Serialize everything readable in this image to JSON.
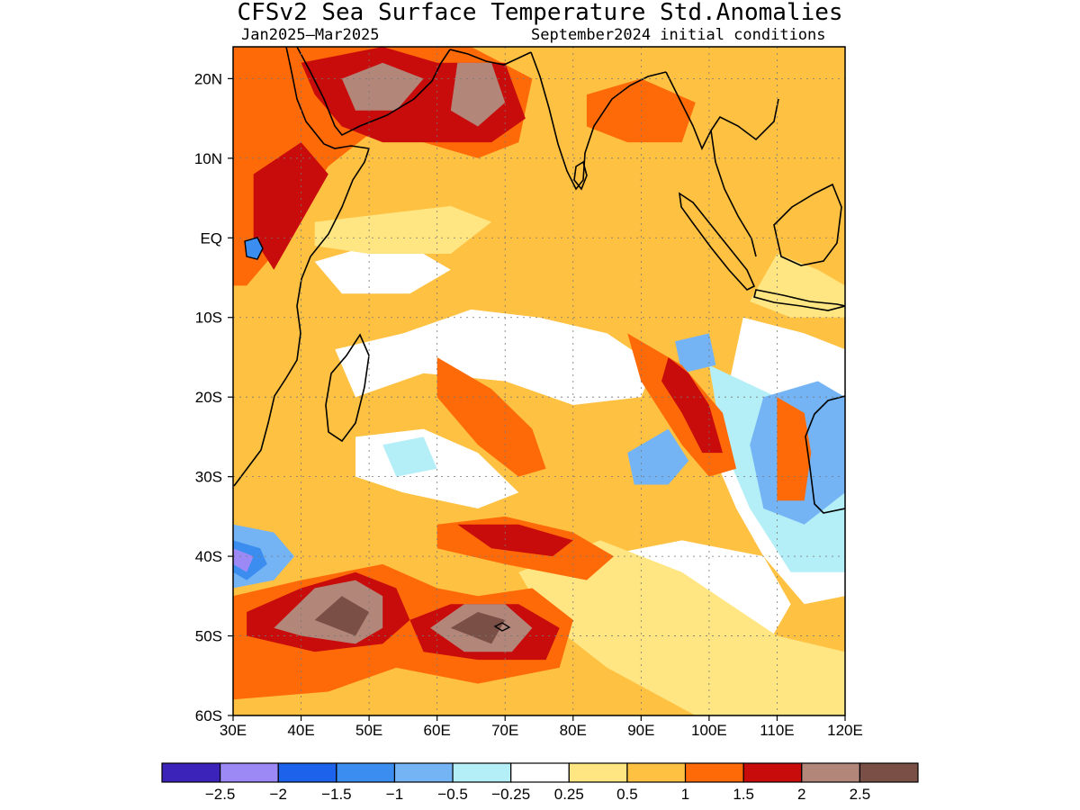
{
  "title": "CFSv2 Sea Surface Temperature Std.Anomalies",
  "forecast_period": "Jan2025–Mar2025",
  "initial_conditions": "September2024 initial conditions",
  "map": {
    "lon_range": [
      30,
      120
    ],
    "lat_range": [
      -60,
      24
    ],
    "lon_ticks": [
      {
        "value": 30,
        "label": "30E"
      },
      {
        "value": 40,
        "label": "40E"
      },
      {
        "value": 50,
        "label": "50E"
      },
      {
        "value": 60,
        "label": "60E"
      },
      {
        "value": 70,
        "label": "70E"
      },
      {
        "value": 80,
        "label": "80E"
      },
      {
        "value": 90,
        "label": "90E"
      },
      {
        "value": 100,
        "label": "100E"
      },
      {
        "value": 110,
        "label": "110E"
      },
      {
        "value": 120,
        "label": "120E"
      }
    ],
    "lat_ticks": [
      {
        "value": 20,
        "label": "20N"
      },
      {
        "value": 10,
        "label": "10N"
      },
      {
        "value": 0,
        "label": "EQ"
      },
      {
        "value": -10,
        "label": "10S"
      },
      {
        "value": -20,
        "label": "20S"
      },
      {
        "value": -30,
        "label": "30S"
      },
      {
        "value": -40,
        "label": "40S"
      },
      {
        "value": -50,
        "label": "50S"
      },
      {
        "value": -60,
        "label": "60S"
      }
    ],
    "gridlines": true,
    "background_color": "#ffc142"
  },
  "colorbar": {
    "colors": [
      "#3b22b8",
      "#9c89f5",
      "#1c62ea",
      "#3b8eef",
      "#74b4f5",
      "#b4eef7",
      "#ffffff",
      "#ffe682",
      "#ffc142",
      "#ff6a08",
      "#c80b0b",
      "#b3867a",
      "#7a4f46"
    ],
    "labels": [
      "−2.5",
      "−2",
      "−1.5",
      "−1",
      "−0.5",
      "−0.25",
      "0.25",
      "0.5",
      "1",
      "1.5",
      "2",
      "2.5"
    ]
  },
  "anomaly_regions": [
    {
      "level": "white",
      "color": "#ffffff",
      "points": [
        [
          45,
          -14
        ],
        [
          55,
          -12
        ],
        [
          65,
          -9
        ],
        [
          75,
          -10
        ],
        [
          85,
          -12
        ],
        [
          92,
          -16
        ],
        [
          90,
          -20
        ],
        [
          80,
          -21
        ],
        [
          70,
          -18
        ],
        [
          58,
          -17
        ],
        [
          48,
          -20
        ]
      ]
    },
    {
      "level": "white",
      "color": "#ffffff",
      "points": [
        [
          48,
          -25
        ],
        [
          58,
          -24
        ],
        [
          66,
          -27
        ],
        [
          72,
          -32
        ],
        [
          66,
          -34
        ],
        [
          55,
          -32
        ],
        [
          48,
          -30
        ]
      ]
    },
    {
      "level": "white",
      "color": "#ffffff",
      "points": [
        [
          84,
          -40
        ],
        [
          96,
          -38
        ],
        [
          108,
          -40
        ],
        [
          112,
          -46
        ],
        [
          108,
          -52
        ],
        [
          100,
          -56
        ],
        [
          92,
          -52
        ],
        [
          86,
          -46
        ]
      ]
    },
    {
      "level": "white",
      "color": "#ffffff",
      "points": [
        [
          105,
          -10
        ],
        [
          114,
          -12
        ],
        [
          120,
          -14
        ],
        [
          120,
          -45
        ],
        [
          114,
          -46
        ],
        [
          108,
          -40
        ],
        [
          104,
          -34
        ],
        [
          100,
          -26
        ],
        [
          103,
          -18
        ]
      ]
    },
    {
      "level": "white",
      "color": "#ffffff",
      "points": [
        [
          42,
          -3
        ],
        [
          50,
          -1
        ],
        [
          58,
          -2
        ],
        [
          62,
          -4
        ],
        [
          56,
          -7
        ],
        [
          46,
          -7
        ]
      ]
    },
    {
      "level": "light-yellow",
      "color": "#ffe682",
      "points": [
        [
          72,
          -42
        ],
        [
          84,
          -38
        ],
        [
          96,
          -42
        ],
        [
          110,
          -50
        ],
        [
          120,
          -52
        ],
        [
          120,
          -60
        ],
        [
          98,
          -60
        ],
        [
          85,
          -54
        ],
        [
          76,
          -48
        ]
      ]
    },
    {
      "level": "light-yellow",
      "color": "#ffe682",
      "points": [
        [
          42,
          2
        ],
        [
          52,
          3
        ],
        [
          62,
          4
        ],
        [
          68,
          2
        ],
        [
          62,
          -2
        ],
        [
          50,
          -2
        ],
        [
          42,
          -1
        ]
      ]
    },
    {
      "level": "light-yellow",
      "color": "#ffe682",
      "points": [
        [
          110,
          -2
        ],
        [
          116,
          -4
        ],
        [
          120,
          -6
        ],
        [
          120,
          -10
        ],
        [
          112,
          -10
        ],
        [
          106,
          -8
        ]
      ]
    },
    {
      "level": "light-blue",
      "color": "#b4eef7",
      "points": [
        [
          100,
          -16
        ],
        [
          110,
          -20
        ],
        [
          116,
          -30
        ],
        [
          120,
          -32
        ],
        [
          120,
          -42
        ],
        [
          112,
          -42
        ],
        [
          106,
          -34
        ],
        [
          102,
          -26
        ]
      ]
    },
    {
      "level": "light-blue",
      "color": "#b4eef7",
      "points": [
        [
          52,
          -26
        ],
        [
          58,
          -25
        ],
        [
          60,
          -29
        ],
        [
          54,
          -30
        ]
      ]
    },
    {
      "level": "blue",
      "color": "#74b4f5",
      "points": [
        [
          108,
          -20
        ],
        [
          116,
          -18
        ],
        [
          120,
          -20
        ],
        [
          120,
          -32
        ],
        [
          114,
          -36
        ],
        [
          108,
          -34
        ],
        [
          106,
          -26
        ]
      ]
    },
    {
      "level": "blue",
      "color": "#74b4f5",
      "points": [
        [
          88,
          -27
        ],
        [
          94,
          -24
        ],
        [
          97,
          -28
        ],
        [
          94,
          -31
        ],
        [
          89,
          -31
        ]
      ]
    },
    {
      "level": "blue",
      "color": "#74b4f5",
      "points": [
        [
          95,
          -13
        ],
        [
          100,
          -12
        ],
        [
          101,
          -16
        ],
        [
          96,
          -17
        ]
      ]
    },
    {
      "level": "blue",
      "color": "#74b4f5",
      "points": [
        [
          30,
          -36
        ],
        [
          36,
          -37
        ],
        [
          39,
          -40
        ],
        [
          36,
          -43
        ],
        [
          30,
          -44
        ]
      ]
    },
    {
      "level": "dark-blue",
      "color": "#3b8eef",
      "points": [
        [
          30,
          -38
        ],
        [
          34,
          -39
        ],
        [
          35,
          -41
        ],
        [
          32,
          -43
        ],
        [
          30,
          -42
        ]
      ]
    },
    {
      "level": "purple",
      "color": "#9c89f5",
      "points": [
        [
          30,
          -39
        ],
        [
          33,
          -40
        ],
        [
          32,
          -42
        ],
        [
          30,
          -41
        ]
      ]
    },
    {
      "level": "orange",
      "color": "#ff6a08",
      "points": [
        [
          30,
          -45
        ],
        [
          40,
          -43
        ],
        [
          52,
          -41
        ],
        [
          60,
          -44
        ],
        [
          66,
          -45
        ],
        [
          74,
          -44
        ],
        [
          80,
          -48
        ],
        [
          78,
          -54
        ],
        [
          66,
          -56
        ],
        [
          54,
          -54
        ],
        [
          44,
          -57
        ],
        [
          30,
          -58
        ]
      ]
    },
    {
      "level": "orange",
      "color": "#ff6a08",
      "points": [
        [
          60,
          -36
        ],
        [
          70,
          -35
        ],
        [
          80,
          -37
        ],
        [
          86,
          -40
        ],
        [
          82,
          -43
        ],
        [
          70,
          -41
        ],
        [
          60,
          -39
        ]
      ]
    },
    {
      "level": "orange",
      "color": "#ff6a08",
      "points": [
        [
          88,
          -12
        ],
        [
          96,
          -16
        ],
        [
          102,
          -22
        ],
        [
          104,
          -29
        ],
        [
          100,
          -30
        ],
        [
          96,
          -26
        ],
        [
          90,
          -18
        ]
      ]
    },
    {
      "level": "orange",
      "color": "#ff6a08",
      "points": [
        [
          60,
          -15
        ],
        [
          68,
          -19
        ],
        [
          74,
          -24
        ],
        [
          76,
          -29
        ],
        [
          72,
          -30
        ],
        [
          66,
          -26
        ],
        [
          60,
          -20
        ]
      ]
    },
    {
      "level": "orange",
      "color": "#ff6a08",
      "points": [
        [
          110,
          -20
        ],
        [
          114,
          -22
        ],
        [
          115,
          -27
        ],
        [
          114,
          -33
        ],
        [
          110,
          -33
        ],
        [
          110,
          -26
        ]
      ]
    },
    {
      "level": "orange",
      "color": "#ff6a08",
      "points": [
        [
          30,
          24
        ],
        [
          40,
          24
        ],
        [
          50,
          24
        ],
        [
          65,
          24
        ],
        [
          74,
          20
        ],
        [
          72,
          12
        ],
        [
          66,
          10
        ],
        [
          58,
          12
        ],
        [
          50,
          13
        ],
        [
          44,
          9
        ],
        [
          40,
          4
        ],
        [
          36,
          -2
        ],
        [
          32,
          -6
        ],
        [
          30,
          -6
        ]
      ]
    },
    {
      "level": "orange",
      "color": "#ff6a08",
      "points": [
        [
          82,
          18
        ],
        [
          90,
          20
        ],
        [
          98,
          17
        ],
        [
          96,
          12
        ],
        [
          88,
          12
        ],
        [
          82,
          14
        ]
      ]
    },
    {
      "level": "red",
      "color": "#c80b0b",
      "points": [
        [
          32,
          -47
        ],
        [
          40,
          -44
        ],
        [
          48,
          -42
        ],
        [
          54,
          -44
        ],
        [
          56,
          -48
        ],
        [
          52,
          -51
        ],
        [
          42,
          -52
        ],
        [
          32,
          -50
        ]
      ]
    },
    {
      "level": "red",
      "color": "#c80b0b",
      "points": [
        [
          56,
          -48
        ],
        [
          62,
          -46
        ],
        [
          72,
          -46
        ],
        [
          78,
          -49
        ],
        [
          76,
          -53
        ],
        [
          66,
          -53
        ],
        [
          58,
          -52
        ]
      ]
    },
    {
      "level": "red",
      "color": "#c80b0b",
      "points": [
        [
          94,
          -15
        ],
        [
          97,
          -17
        ],
        [
          100,
          -21
        ],
        [
          102,
          -27
        ],
        [
          99,
          -27
        ],
        [
          96,
          -22
        ],
        [
          93,
          -18
        ]
      ]
    },
    {
      "level": "red",
      "color": "#c80b0b",
      "points": [
        [
          63,
          -36
        ],
        [
          72,
          -36
        ],
        [
          80,
          -38
        ],
        [
          77,
          -40
        ],
        [
          68,
          -39
        ]
      ]
    },
    {
      "level": "red",
      "color": "#c80b0b",
      "points": [
        [
          40,
          22
        ],
        [
          52,
          24
        ],
        [
          60,
          22
        ],
        [
          70,
          22
        ],
        [
          73,
          15
        ],
        [
          68,
          12
        ],
        [
          60,
          12
        ],
        [
          52,
          12
        ],
        [
          46,
          14
        ],
        [
          42,
          18
        ]
      ]
    },
    {
      "level": "red",
      "color": "#c80b0b",
      "points": [
        [
          33,
          8
        ],
        [
          40,
          12
        ],
        [
          44,
          8
        ],
        [
          40,
          2
        ],
        [
          36,
          -4
        ],
        [
          33,
          0
        ]
      ]
    },
    {
      "level": "brown",
      "color": "#b3867a",
      "points": [
        [
          36,
          -49
        ],
        [
          42,
          -44
        ],
        [
          48,
          -43
        ],
        [
          52,
          -45
        ],
        [
          52,
          -49
        ],
        [
          48,
          -51
        ],
        [
          40,
          -50
        ]
      ]
    },
    {
      "level": "brown",
      "color": "#b3867a",
      "points": [
        [
          59,
          -49
        ],
        [
          64,
          -46
        ],
        [
          70,
          -46
        ],
        [
          74,
          -49
        ],
        [
          71,
          -52
        ],
        [
          64,
          -52
        ]
      ]
    },
    {
      "level": "brown",
      "color": "#b3867a",
      "points": [
        [
          46,
          20
        ],
        [
          52,
          22
        ],
        [
          58,
          20
        ],
        [
          54,
          16
        ],
        [
          48,
          16
        ]
      ]
    },
    {
      "level": "brown",
      "color": "#b3867a",
      "points": [
        [
          63,
          22
        ],
        [
          68,
          22
        ],
        [
          70,
          17
        ],
        [
          66,
          14
        ],
        [
          62,
          16
        ]
      ]
    },
    {
      "level": "dark-brown",
      "color": "#7a4f46",
      "points": [
        [
          42,
          -48
        ],
        [
          46,
          -45
        ],
        [
          50,
          -47
        ],
        [
          48,
          -50
        ]
      ]
    },
    {
      "level": "dark-brown",
      "color": "#7a4f46",
      "points": [
        [
          62,
          -49
        ],
        [
          66,
          -47
        ],
        [
          70,
          -48
        ],
        [
          68,
          -51
        ]
      ]
    }
  ]
}
